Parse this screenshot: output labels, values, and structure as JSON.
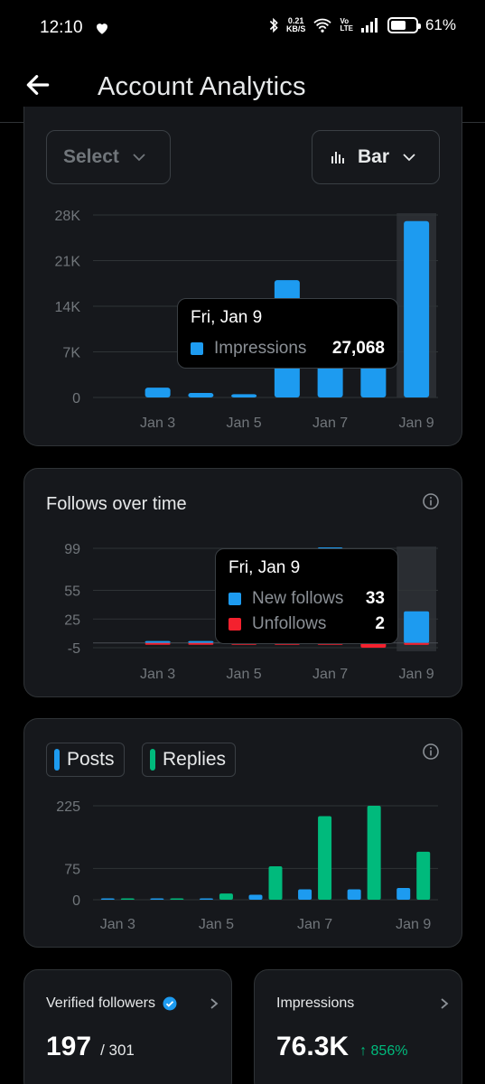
{
  "status": {
    "time": "12:10",
    "speed_top": "0.21",
    "speed_bottom": "KB/S",
    "volte_top": "Vo",
    "volte_bottom": "LTE",
    "battery": "61%",
    "battery_level": 0.61
  },
  "header": {
    "title": "Account Analytics"
  },
  "impressions_chart": {
    "select_label": "Select",
    "chart_type_label": "Bar",
    "tooltip": {
      "date": "Fri, Jan 9",
      "series": "Impressions",
      "value": "27,068"
    },
    "chart_data": {
      "type": "bar",
      "categories": [
        "Jan 2",
        "Jan 3",
        "Jan 4",
        "Jan 5",
        "Jan 6",
        "Jan 7",
        "Jan 8",
        "Jan 9"
      ],
      "x_tick_labels": [
        "Jan 3",
        "Jan 5",
        "Jan 7",
        "Jan 9"
      ],
      "y_tick_labels": [
        "28K",
        "21K",
        "14K",
        "7K",
        "0"
      ],
      "ylim": [
        0,
        28000
      ],
      "series": [
        {
          "name": "Impressions",
          "color": "#1d9bf0",
          "values": [
            null,
            1500,
            700,
            500,
            18000,
            6000,
            6000,
            27068
          ]
        }
      ],
      "highlighted_category": "Jan 9"
    }
  },
  "follows_chart": {
    "title": "Follows over time",
    "tooltip": {
      "date": "Fri, Jan 9",
      "rows": [
        {
          "label": "New follows",
          "value": "33",
          "color": "#1d9bf0"
        },
        {
          "label": "Unfollows",
          "value": "2",
          "color": "#f4212e"
        }
      ]
    },
    "chart_data": {
      "type": "bar",
      "categories": [
        "Jan 2",
        "Jan 3",
        "Jan 4",
        "Jan 5",
        "Jan 6",
        "Jan 7",
        "Jan 8",
        "Jan 9"
      ],
      "x_tick_labels": [
        "Jan 3",
        "Jan 5",
        "Jan 7",
        "Jan 9"
      ],
      "y_tick_labels": [
        "99",
        "55",
        "25",
        "-5"
      ],
      "series": [
        {
          "name": "New follows",
          "color": "#1d9bf0",
          "values": [
            null,
            2,
            2,
            1,
            2,
            100,
            10,
            33
          ]
        },
        {
          "name": "Unfollows",
          "color": "#f4212e",
          "values": [
            null,
            0,
            0,
            0,
            -1,
            0,
            -5,
            -2
          ]
        }
      ],
      "highlighted_category": "Jan 9"
    }
  },
  "posts_chart": {
    "chips": [
      {
        "label": "Posts",
        "color": "#1d9bf0"
      },
      {
        "label": "Replies",
        "color": "#00ba7c"
      }
    ],
    "chart_data": {
      "type": "bar",
      "categories": [
        "Jan 3",
        "Jan 4",
        "Jan 5",
        "Jan 6",
        "Jan 7",
        "Jan 8",
        "Jan 9"
      ],
      "x_tick_labels": [
        "Jan 3",
        "Jan 5",
        "Jan 7",
        "Jan 9"
      ],
      "y_tick_labels": [
        "225",
        "75",
        "0"
      ],
      "series": [
        {
          "name": "Posts",
          "color": "#1d9bf0",
          "values": [
            1,
            1,
            1,
            12,
            25,
            25,
            28
          ]
        },
        {
          "name": "Replies",
          "color": "#00ba7c",
          "values": [
            1,
            0,
            15,
            80,
            200,
            225,
            115
          ]
        }
      ]
    }
  },
  "stats": {
    "verified_followers": {
      "label": "Verified followers",
      "value": "197",
      "total": "/ 301"
    },
    "impressions": {
      "label": "Impressions",
      "value": "76.3K",
      "change": "856%",
      "change_arrow": "↑"
    }
  }
}
